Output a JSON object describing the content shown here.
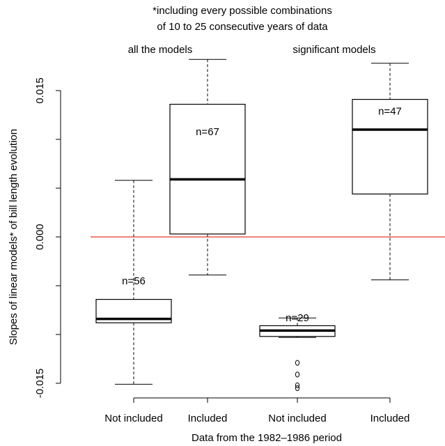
{
  "chart_data": {
    "type": "boxplot",
    "title_lines": [
      "*including every possible combinations",
      "of 10 to 25 consecutive years of data"
    ],
    "group_labels": [
      "all the models",
      "significant models"
    ],
    "xlabel": "Data from the 1982–1986 period",
    "ylabel": "Slopes of linear models* of bill length evolution",
    "categories": [
      "Not included",
      "Included",
      "Not included",
      "Included"
    ],
    "yticks": [
      -0.015,
      0.0,
      0.015
    ],
    "ytick_labels": [
      "-0.015",
      "0.000",
      "0.015"
    ],
    "ylim": [
      -0.0155,
      0.0183
    ],
    "reference_line": {
      "y": 0,
      "color": "#e8372a"
    },
    "boxes": [
      {
        "category": "Not included",
        "group": "all the models",
        "whisker_low": -0.0151,
        "q1": -0.0088,
        "median": -0.0084,
        "q3": -0.0064,
        "whisker_high": 0.0058,
        "outliers": [],
        "n_label": "n=56"
      },
      {
        "category": "Included",
        "group": "all the models",
        "whisker_low": -0.0039,
        "q1": 0.0003,
        "median": 0.0059,
        "q3": 0.0136,
        "whisker_high": 0.0182,
        "outliers": [],
        "n_label": "n=67"
      },
      {
        "category": "Not included",
        "group": "significant models",
        "whisker_low": -0.0103,
        "q1": -0.0102,
        "median": -0.0096,
        "q3": -0.0091,
        "whisker_high": -0.0083,
        "outliers": [
          -0.0129,
          -0.0141,
          -0.0152,
          -0.0155
        ],
        "n_label": "n=29"
      },
      {
        "category": "Included",
        "group": "significant models",
        "whisker_low": -0.0044,
        "q1": 0.0044,
        "median": 0.011,
        "q3": 0.0141,
        "whisker_high": 0.0178,
        "outliers": [],
        "n_label": "n=47"
      }
    ],
    "n_label_values": [
      -0.0045,
      0.0108,
      -0.0083,
      0.0129
    ],
    "grid": false,
    "legend": "none",
    "colors": {
      "box_fill": "#ffffff",
      "line": "#000000",
      "reference": "#e8372a"
    }
  }
}
